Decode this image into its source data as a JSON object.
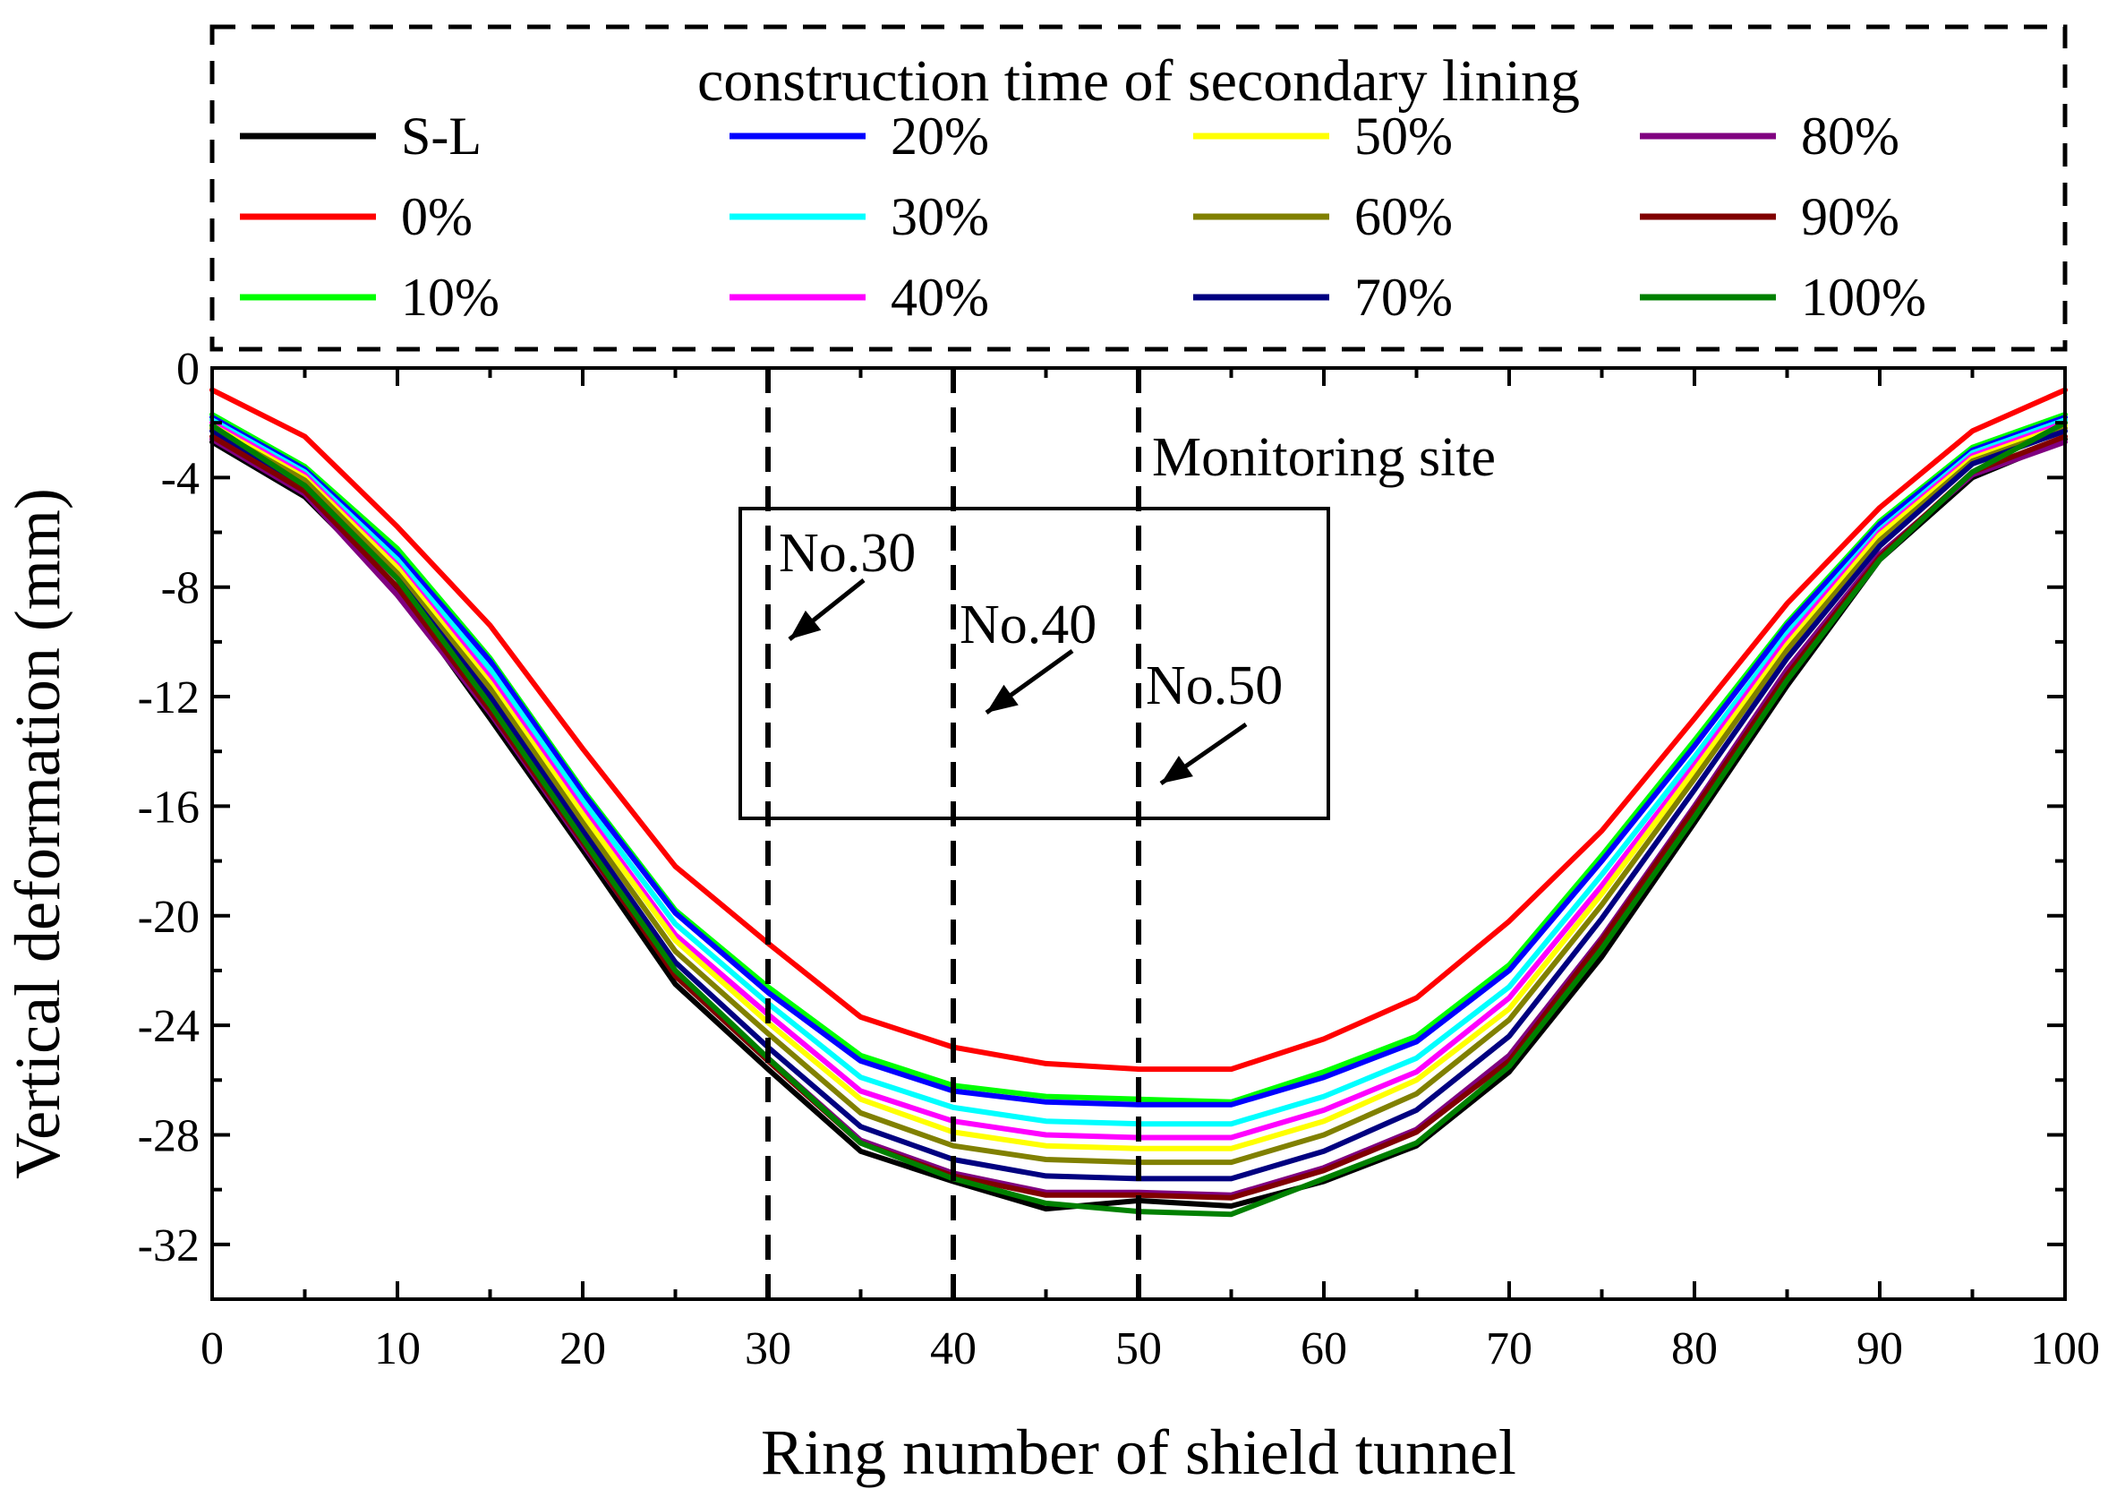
{
  "chart_data": {
    "type": "line",
    "title": "",
    "xlabel": "Ring number of shield tunnel",
    "ylabel": "Vertical deformation (mm)",
    "xlim": [
      0,
      100
    ],
    "ylim": [
      -34,
      0
    ],
    "xticks": [
      0,
      10,
      20,
      30,
      40,
      50,
      60,
      70,
      80,
      90,
      100
    ],
    "yticks": [
      0,
      -4,
      -8,
      -12,
      -16,
      -20,
      -24,
      -28,
      -32
    ],
    "grid": false,
    "legend": {
      "title": "construction time of secondary lining",
      "position": "top",
      "columns": 4
    },
    "x": [
      0,
      5,
      10,
      15,
      20,
      25,
      30,
      35,
      40,
      45,
      50,
      55,
      60,
      65,
      70,
      75,
      80,
      85,
      90,
      95,
      100
    ],
    "series": [
      {
        "name": "S-L",
        "color": "#000000",
        "values": [
          -2.7,
          -4.7,
          -8.1,
          -12.8,
          -17.6,
          -22.5,
          -25.6,
          -28.6,
          -29.7,
          -30.7,
          -30.4,
          -30.6,
          -29.7,
          -28.4,
          -25.7,
          -21.5,
          -16.6,
          -11.6,
          -7.0,
          -4.0,
          -2.6
        ]
      },
      {
        "name": "0%",
        "color": "#ff0000",
        "values": [
          -0.8,
          -2.5,
          -5.8,
          -9.4,
          -13.9,
          -18.2,
          -21.0,
          -23.7,
          -24.8,
          -25.4,
          -25.6,
          -25.6,
          -24.5,
          -23.0,
          -20.2,
          -16.9,
          -12.8,
          -8.6,
          -5.1,
          -2.3,
          -0.8
        ]
      },
      {
        "name": "10%",
        "color": "#00ff00",
        "values": [
          -1.7,
          -3.6,
          -6.6,
          -10.6,
          -15.4,
          -19.8,
          -22.6,
          -25.1,
          -26.2,
          -26.6,
          -26.7,
          -26.8,
          -25.7,
          -24.4,
          -21.8,
          -17.8,
          -13.6,
          -9.3,
          -5.6,
          -2.9,
          -1.7
        ]
      },
      {
        "name": "20%",
        "color": "#0000ff",
        "values": [
          -1.8,
          -3.7,
          -6.8,
          -10.7,
          -15.5,
          -19.9,
          -22.8,
          -25.3,
          -26.4,
          -26.8,
          -26.9,
          -26.9,
          -25.9,
          -24.6,
          -22.0,
          -18.0,
          -13.8,
          -9.4,
          -5.7,
          -3.0,
          -1.8
        ]
      },
      {
        "name": "30%",
        "color": "#00ffff",
        "values": [
          -1.9,
          -3.8,
          -7.0,
          -11.0,
          -15.8,
          -20.3,
          -23.2,
          -25.9,
          -27.0,
          -27.5,
          -27.6,
          -27.6,
          -26.6,
          -25.2,
          -22.6,
          -18.5,
          -14.2,
          -9.7,
          -5.9,
          -3.1,
          -1.9
        ]
      },
      {
        "name": "40%",
        "color": "#ff00ff",
        "values": [
          -2.0,
          -3.9,
          -7.2,
          -11.3,
          -16.1,
          -20.7,
          -23.6,
          -26.4,
          -27.5,
          -28.0,
          -28.1,
          -28.1,
          -27.1,
          -25.7,
          -23.0,
          -18.9,
          -14.5,
          -9.9,
          -6.0,
          -3.2,
          -2.0
        ]
      },
      {
        "name": "50%",
        "color": "#ffff00",
        "values": [
          -2.1,
          -4.0,
          -7.3,
          -11.5,
          -16.3,
          -20.9,
          -23.9,
          -26.7,
          -27.9,
          -28.4,
          -28.5,
          -28.5,
          -27.5,
          -26.0,
          -23.4,
          -19.2,
          -14.7,
          -10.1,
          -6.1,
          -3.3,
          -2.1
        ]
      },
      {
        "name": "60%",
        "color": "#808000",
        "values": [
          -2.2,
          -4.1,
          -7.5,
          -11.7,
          -16.6,
          -21.3,
          -24.3,
          -27.2,
          -28.4,
          -28.9,
          -29.0,
          -29.0,
          -28.0,
          -26.5,
          -23.8,
          -19.6,
          -15.0,
          -10.3,
          -6.3,
          -3.4,
          -2.2
        ]
      },
      {
        "name": "70%",
        "color": "#000080",
        "values": [
          -2.3,
          -4.3,
          -7.7,
          -12.0,
          -16.9,
          -21.7,
          -24.8,
          -27.7,
          -28.9,
          -29.5,
          -29.6,
          -29.6,
          -28.6,
          -27.1,
          -24.4,
          -20.1,
          -15.4,
          -10.6,
          -6.5,
          -3.5,
          -2.3
        ]
      },
      {
        "name": "80%",
        "color": "#800080",
        "values": [
          -2.6,
          -4.6,
          -8.3,
          -12.6,
          -17.4,
          -22.1,
          -25.2,
          -28.2,
          -29.4,
          -30.1,
          -30.1,
          -30.2,
          -29.2,
          -27.8,
          -25.1,
          -20.8,
          -16.0,
          -11.0,
          -6.8,
          -3.9,
          -2.7
        ]
      },
      {
        "name": "90%",
        "color": "#800000",
        "values": [
          -2.5,
          -4.5,
          -8.0,
          -12.5,
          -17.3,
          -22.2,
          -25.3,
          -28.3,
          -29.5,
          -30.2,
          -30.2,
          -30.3,
          -29.3,
          -27.9,
          -25.3,
          -20.9,
          -16.1,
          -11.2,
          -6.9,
          -3.8,
          -2.5
        ]
      },
      {
        "name": "100%",
        "color": "#008000",
        "values": [
          -2.1,
          -4.3,
          -7.7,
          -12.3,
          -17.2,
          -22.0,
          -25.2,
          -28.3,
          -29.6,
          -30.5,
          -30.8,
          -30.9,
          -29.6,
          -28.3,
          -25.5,
          -21.2,
          -16.4,
          -11.4,
          -7.0,
          -3.8,
          -2.0
        ]
      }
    ],
    "monitoring_lines": [
      30,
      40,
      50
    ],
    "annotations": {
      "monitoring_title": "Monitoring site",
      "labels": [
        {
          "text": "No.30",
          "x": 30
        },
        {
          "text": "No.40",
          "x": 40
        },
        {
          "text": "No.50",
          "x": 50
        }
      ]
    }
  }
}
